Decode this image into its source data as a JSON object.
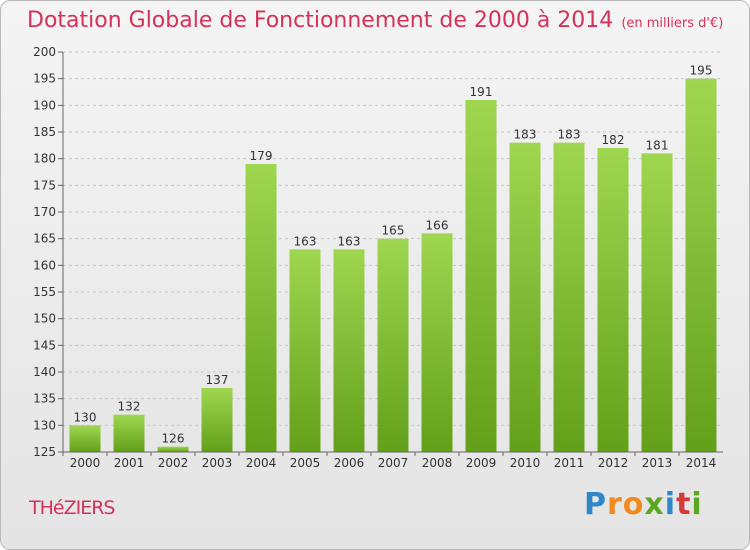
{
  "header": {
    "title": "Dotation Globale de Fonctionnement de 2000 à 2014",
    "subtitle": "(en milliers d'€)"
  },
  "footer": {
    "commune": "THéZIERS",
    "logo": [
      "P",
      "r",
      "o",
      "x",
      "i",
      "t",
      "i"
    ]
  },
  "chart_data": {
    "type": "bar",
    "title": "Dotation Globale de Fonctionnement de 2000 à 2014",
    "subtitle": "(en milliers d'€)",
    "categories": [
      "2000",
      "2001",
      "2002",
      "2003",
      "2004",
      "2005",
      "2006",
      "2007",
      "2008",
      "2009",
      "2010",
      "2011",
      "2012",
      "2013",
      "2014"
    ],
    "values": [
      130,
      132,
      126,
      137,
      179,
      163,
      163,
      165,
      166,
      191,
      183,
      183,
      182,
      181,
      195
    ],
    "ylim": [
      125,
      200
    ],
    "yticks": [
      125,
      130,
      135,
      140,
      145,
      150,
      155,
      160,
      165,
      170,
      175,
      180,
      185,
      190,
      195,
      200
    ],
    "grid": true,
    "colors": {
      "bar_top": "#9fd650",
      "bar_bottom": "#63a01a",
      "grid": "#c8c8c8",
      "title": "#d4325a"
    }
  }
}
